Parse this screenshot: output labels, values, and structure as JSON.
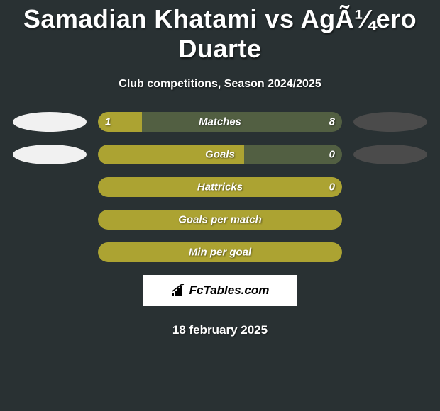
{
  "title": "Samadian Khatami vs AgÃ¼ero Duarte",
  "subtitle": "Club competitions, Season 2024/2025",
  "date": "18 february 2025",
  "logo_text": "FcTables.com",
  "colors": {
    "background": "#293133",
    "bar_left_fill": "#aca332",
    "bar_right_bg": "#525f42",
    "bar_full_fill": "#aca332",
    "ellipse_left": "#f1f1f1",
    "ellipse_right": "#4b4b4b",
    "text": "#ffffff"
  },
  "bars": [
    {
      "label": "Matches",
      "left_val": "1",
      "right_val": "8",
      "left_pct": 18,
      "show_ellipses": true,
      "left_fill_color": "#aca332",
      "bg_color": "#525f42"
    },
    {
      "label": "Goals",
      "left_val": "",
      "right_val": "0",
      "left_pct": 60,
      "show_ellipses": true,
      "left_fill_color": "#aca332",
      "bg_color": "#525f42"
    },
    {
      "label": "Hattricks",
      "left_val": "",
      "right_val": "0",
      "left_pct": 100,
      "show_ellipses": false,
      "left_fill_color": "#aca332",
      "bg_color": "#525f42"
    },
    {
      "label": "Goals per match",
      "left_val": "",
      "right_val": "",
      "left_pct": 100,
      "show_ellipses": false,
      "left_fill_color": "#aca332",
      "bg_color": "#525f42"
    },
    {
      "label": "Min per goal",
      "left_val": "",
      "right_val": "",
      "left_pct": 100,
      "show_ellipses": false,
      "left_fill_color": "#aca332",
      "bg_color": "#525f42"
    }
  ]
}
